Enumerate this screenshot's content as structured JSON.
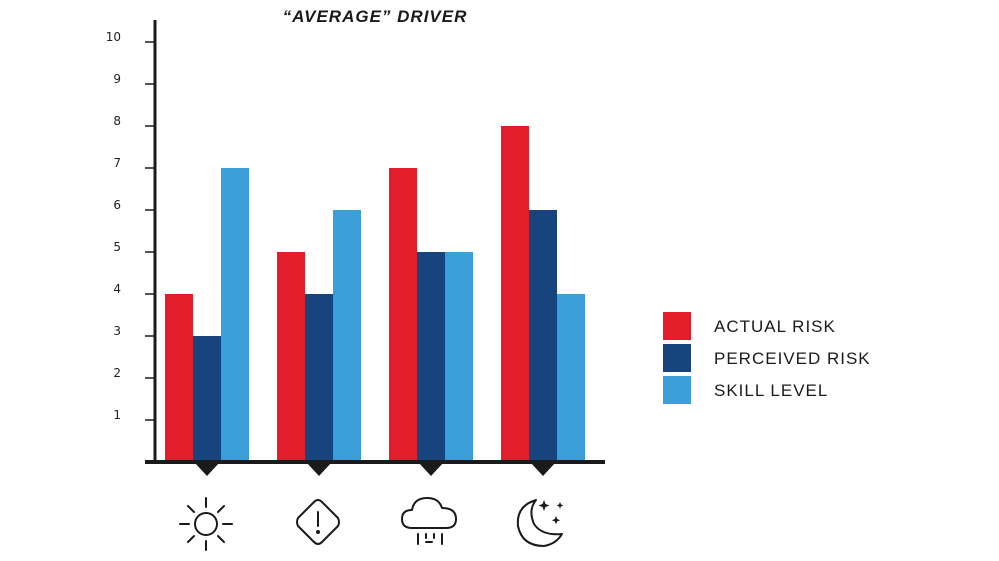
{
  "chart_data": {
    "type": "bar",
    "title": "“AVERAGE” DRIVER",
    "xlabel": "",
    "ylabel": "",
    "ylim": [
      0,
      10
    ],
    "yticks": [
      1,
      2,
      3,
      4,
      5,
      6,
      7,
      8,
      9,
      10
    ],
    "categories": [
      "sun-icon",
      "warning-sign-icon",
      "rain-cloud-icon",
      "moon-stars-icon"
    ],
    "series": [
      {
        "name": "ACTUAL RISK",
        "color": "#e31e2a",
        "values": [
          4,
          5,
          7,
          8
        ]
      },
      {
        "name": "PERCEIVED RISK",
        "color": "#18447e",
        "values": [
          3,
          4,
          5,
          6
        ]
      },
      {
        "name": "SKILL LEVEL",
        "color": "#3a9fd9",
        "values": [
          7,
          6,
          5,
          4
        ]
      }
    ],
    "legend_position": "right",
    "grid": false
  }
}
